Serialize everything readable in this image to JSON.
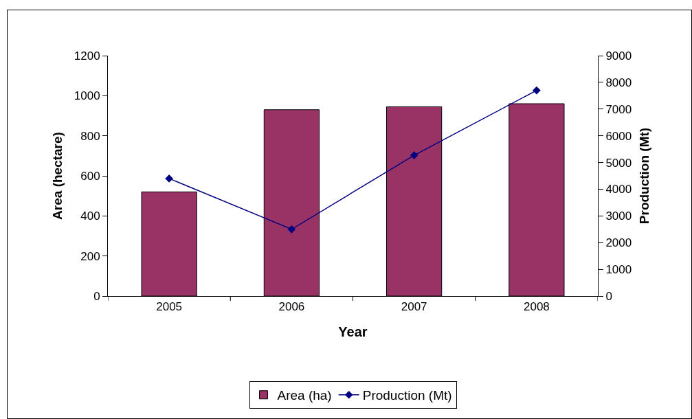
{
  "chart_data": {
    "type": "bar",
    "categories": [
      "2005",
      "2006",
      "2007",
      "2008"
    ],
    "xlabel": "Year",
    "ylabel": "Area (hectare)",
    "y2label": "Production (Mt)",
    "series": [
      {
        "name": "Area (ha)",
        "color": "#993366",
        "values": [
          520,
          930,
          945,
          960
        ]
      },
      {
        "name": "Production (Mt)",
        "type": "line",
        "axis": "y2",
        "color": "#000080",
        "marker": "diamond",
        "values": [
          4400,
          2500,
          5270,
          7700
        ]
      }
    ],
    "ylim": [
      0,
      1200
    ],
    "yticks": [
      0,
      200,
      400,
      600,
      800,
      1000,
      1200
    ],
    "y2lim": [
      0,
      9000
    ],
    "y2ticks": [
      0,
      1000,
      2000,
      3000,
      4000,
      5000,
      6000,
      7000,
      8000,
      9000
    ],
    "grid": false,
    "legend": "bottom"
  }
}
